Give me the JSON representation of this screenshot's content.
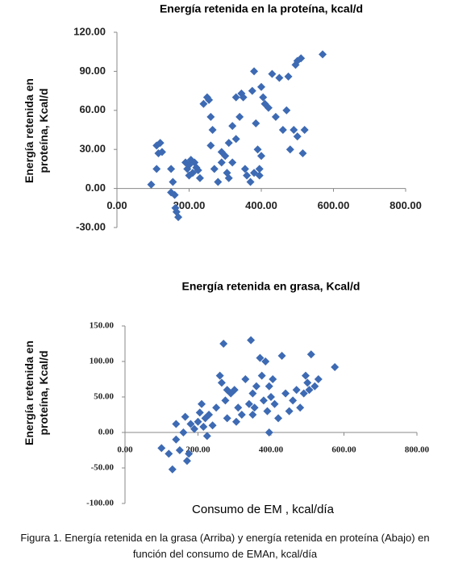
{
  "chart_data": [
    {
      "type": "scatter",
      "title": "Energía retenida  en la proteína, kcal/d",
      "ylabel": "Energía retenida en proteína, Kcal/d",
      "color": "#3d6ab3",
      "xlim": [
        0,
        800
      ],
      "ylim": [
        -30,
        120
      ],
      "xticks": [
        {
          "value": 0,
          "label": "0.00"
        },
        {
          "value": 200,
          "label": "200.00"
        },
        {
          "value": 400,
          "label": "400.00"
        },
        {
          "value": 600,
          "label": "600.00"
        },
        {
          "value": 800,
          "label": "800.00"
        }
      ],
      "yticks": [
        {
          "value": -30,
          "label": "-30.00"
        },
        {
          "value": 0,
          "label": "0.00"
        },
        {
          "value": 30,
          "label": "30.00"
        },
        {
          "value": 60,
          "label": "60.00"
        },
        {
          "value": 90,
          "label": "90.00"
        },
        {
          "value": 120,
          "label": "120.00"
        }
      ],
      "x": [
        95,
        110,
        115,
        120,
        125,
        110,
        150,
        155,
        160,
        162,
        170,
        165,
        150,
        190,
        195,
        200,
        205,
        210,
        215,
        220,
        200,
        225,
        230,
        240,
        250,
        255,
        260,
        265,
        260,
        270,
        280,
        290,
        300,
        305,
        310,
        320,
        320,
        330,
        340,
        345,
        350,
        355,
        360,
        370,
        380,
        375,
        385,
        390,
        395,
        400,
        400,
        405,
        410,
        420,
        430,
        440,
        450,
        460,
        470,
        475,
        480,
        490,
        495,
        500,
        510,
        500,
        515,
        520,
        570,
        395,
        380,
        330,
        290,
        310
      ],
      "values": [
        3,
        33,
        27,
        35,
        28,
        15,
        15,
        5,
        -5,
        -15,
        -22,
        -18,
        -3,
        20,
        15,
        18,
        22,
        12,
        20,
        16,
        10,
        14,
        8,
        65,
        70,
        68,
        55,
        45,
        33,
        15,
        5,
        20,
        25,
        12,
        8,
        20,
        48,
        38,
        55,
        73,
        70,
        15,
        10,
        5,
        90,
        75,
        50,
        30,
        10,
        25,
        78,
        70,
        65,
        62,
        88,
        55,
        85,
        45,
        60,
        86,
        30,
        45,
        95,
        98,
        100,
        40,
        27,
        45,
        103,
        15,
        12,
        70,
        28,
        35
      ]
    },
    {
      "type": "scatter",
      "title": "Energía retenida  en grasa, Kcal/d",
      "ylabel": "Energía retenida en proteína, Kcal/d",
      "xlabel": "Consumo de EM , kcal/día",
      "color": "#3d6ab3",
      "xlim": [
        0,
        800
      ],
      "ylim": [
        -100,
        150
      ],
      "xticks": [
        {
          "value": 0,
          "label": "0.00"
        },
        {
          "value": 200,
          "label": "200.00"
        },
        {
          "value": 400,
          "label": "400.00"
        },
        {
          "value": 600,
          "label": "600.00"
        },
        {
          "value": 800,
          "label": "800.00"
        }
      ],
      "yticks": [
        {
          "value": -100,
          "label": "-100.00"
        },
        {
          "value": -50,
          "label": "-50.00"
        },
        {
          "value": 0,
          "label": "0.00"
        },
        {
          "value": 50,
          "label": "50.00"
        },
        {
          "value": 100,
          "label": "100.00"
        },
        {
          "value": 150,
          "label": "150.00"
        }
      ],
      "x": [
        100,
        120,
        130,
        140,
        140,
        150,
        160,
        165,
        170,
        175,
        180,
        190,
        200,
        205,
        210,
        215,
        220,
        225,
        230,
        240,
        250,
        260,
        265,
        270,
        275,
        280,
        290,
        300,
        305,
        310,
        320,
        330,
        340,
        345,
        350,
        355,
        360,
        370,
        375,
        380,
        385,
        390,
        395,
        400,
        405,
        410,
        420,
        430,
        440,
        450,
        460,
        470,
        480,
        490,
        495,
        500,
        505,
        510,
        520,
        530,
        575,
        395,
        350,
        280
      ],
      "values": [
        -22,
        -30,
        -52,
        -10,
        12,
        -25,
        0,
        22,
        -40,
        -30,
        12,
        5,
        15,
        28,
        40,
        8,
        20,
        -5,
        25,
        10,
        35,
        80,
        70,
        125,
        45,
        20,
        55,
        60,
        15,
        35,
        25,
        75,
        40,
        130,
        55,
        35,
        65,
        105,
        80,
        45,
        100,
        30,
        65,
        50,
        75,
        40,
        20,
        108,
        55,
        30,
        45,
        60,
        35,
        55,
        80,
        70,
        60,
        110,
        65,
        75,
        92,
        0,
        25,
        60
      ]
    }
  ],
  "caption": "Figura 1. Energía retenida en la grasa (Arriba) y energía retenida en proteína (Abajo) en función del consumo de EMAn, kcal/día"
}
